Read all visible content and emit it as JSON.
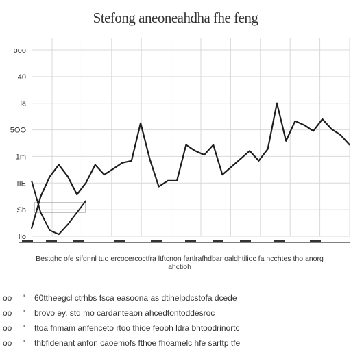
{
  "chart_data": {
    "type": "line",
    "title": "Stefong aneoneahdha fhe feng",
    "ylim": [
      0,
      100
    ],
    "y_ticks": [
      "ooo",
      "40",
      "la",
      "5OO",
      "1m",
      "IIE",
      "Sh",
      "llo"
    ],
    "x_ticks": [
      "",
      "",
      "",
      "",
      "",
      "",
      "",
      "",
      "",
      ""
    ],
    "grid": true,
    "series": [
      {
        "x": [
          0,
          1,
          2,
          3,
          4,
          5,
          6,
          7,
          8,
          9,
          10,
          11,
          12,
          13,
          14,
          15,
          16,
          17,
          18,
          19,
          20,
          21,
          22,
          23,
          24,
          25,
          26,
          27,
          28,
          29,
          30,
          31,
          32,
          33,
          34,
          35
        ],
        "values": [
          4,
          20,
          30,
          36,
          30,
          21,
          27,
          36,
          31,
          34,
          37,
          38,
          57,
          39,
          25,
          28,
          28,
          46,
          43,
          41,
          46,
          31,
          35,
          39,
          43,
          38,
          44,
          67,
          48,
          58,
          56,
          53,
          59,
          54,
          51,
          46
        ],
        "secondary": [
          28,
          12,
          3,
          1,
          6,
          12,
          18
        ]
      }
    ]
  },
  "caption": {
    "line1": "Bestghc ofe sifgnnl tuo ercocercoctfra ltftcnon fartlrafhdbar oaldhtilioc fa ncchtes tho anorg",
    "line2": "ahctioh"
  },
  "notes": [
    {
      "num": "oo",
      "bullet": "'",
      "text": "60ttheegcl ctrhbs fsca  easoona as  dtihelpdcstofa dcede"
    },
    {
      "num": "oo",
      "bullet": "'",
      "text": "brovo ey. std  mo cardanteaon ahcedtontoddesroc"
    },
    {
      "num": "oo",
      "bullet": "'",
      "text": "ttoa fnmam anfenceto rtoo thioe feooh ldra bhtoodrinortc"
    },
    {
      "num": "oo",
      "bullet": "'",
      "text": "thbfidenant anfon caoemofs fthoe fhoamelc hfe sarttp tfe"
    }
  ]
}
